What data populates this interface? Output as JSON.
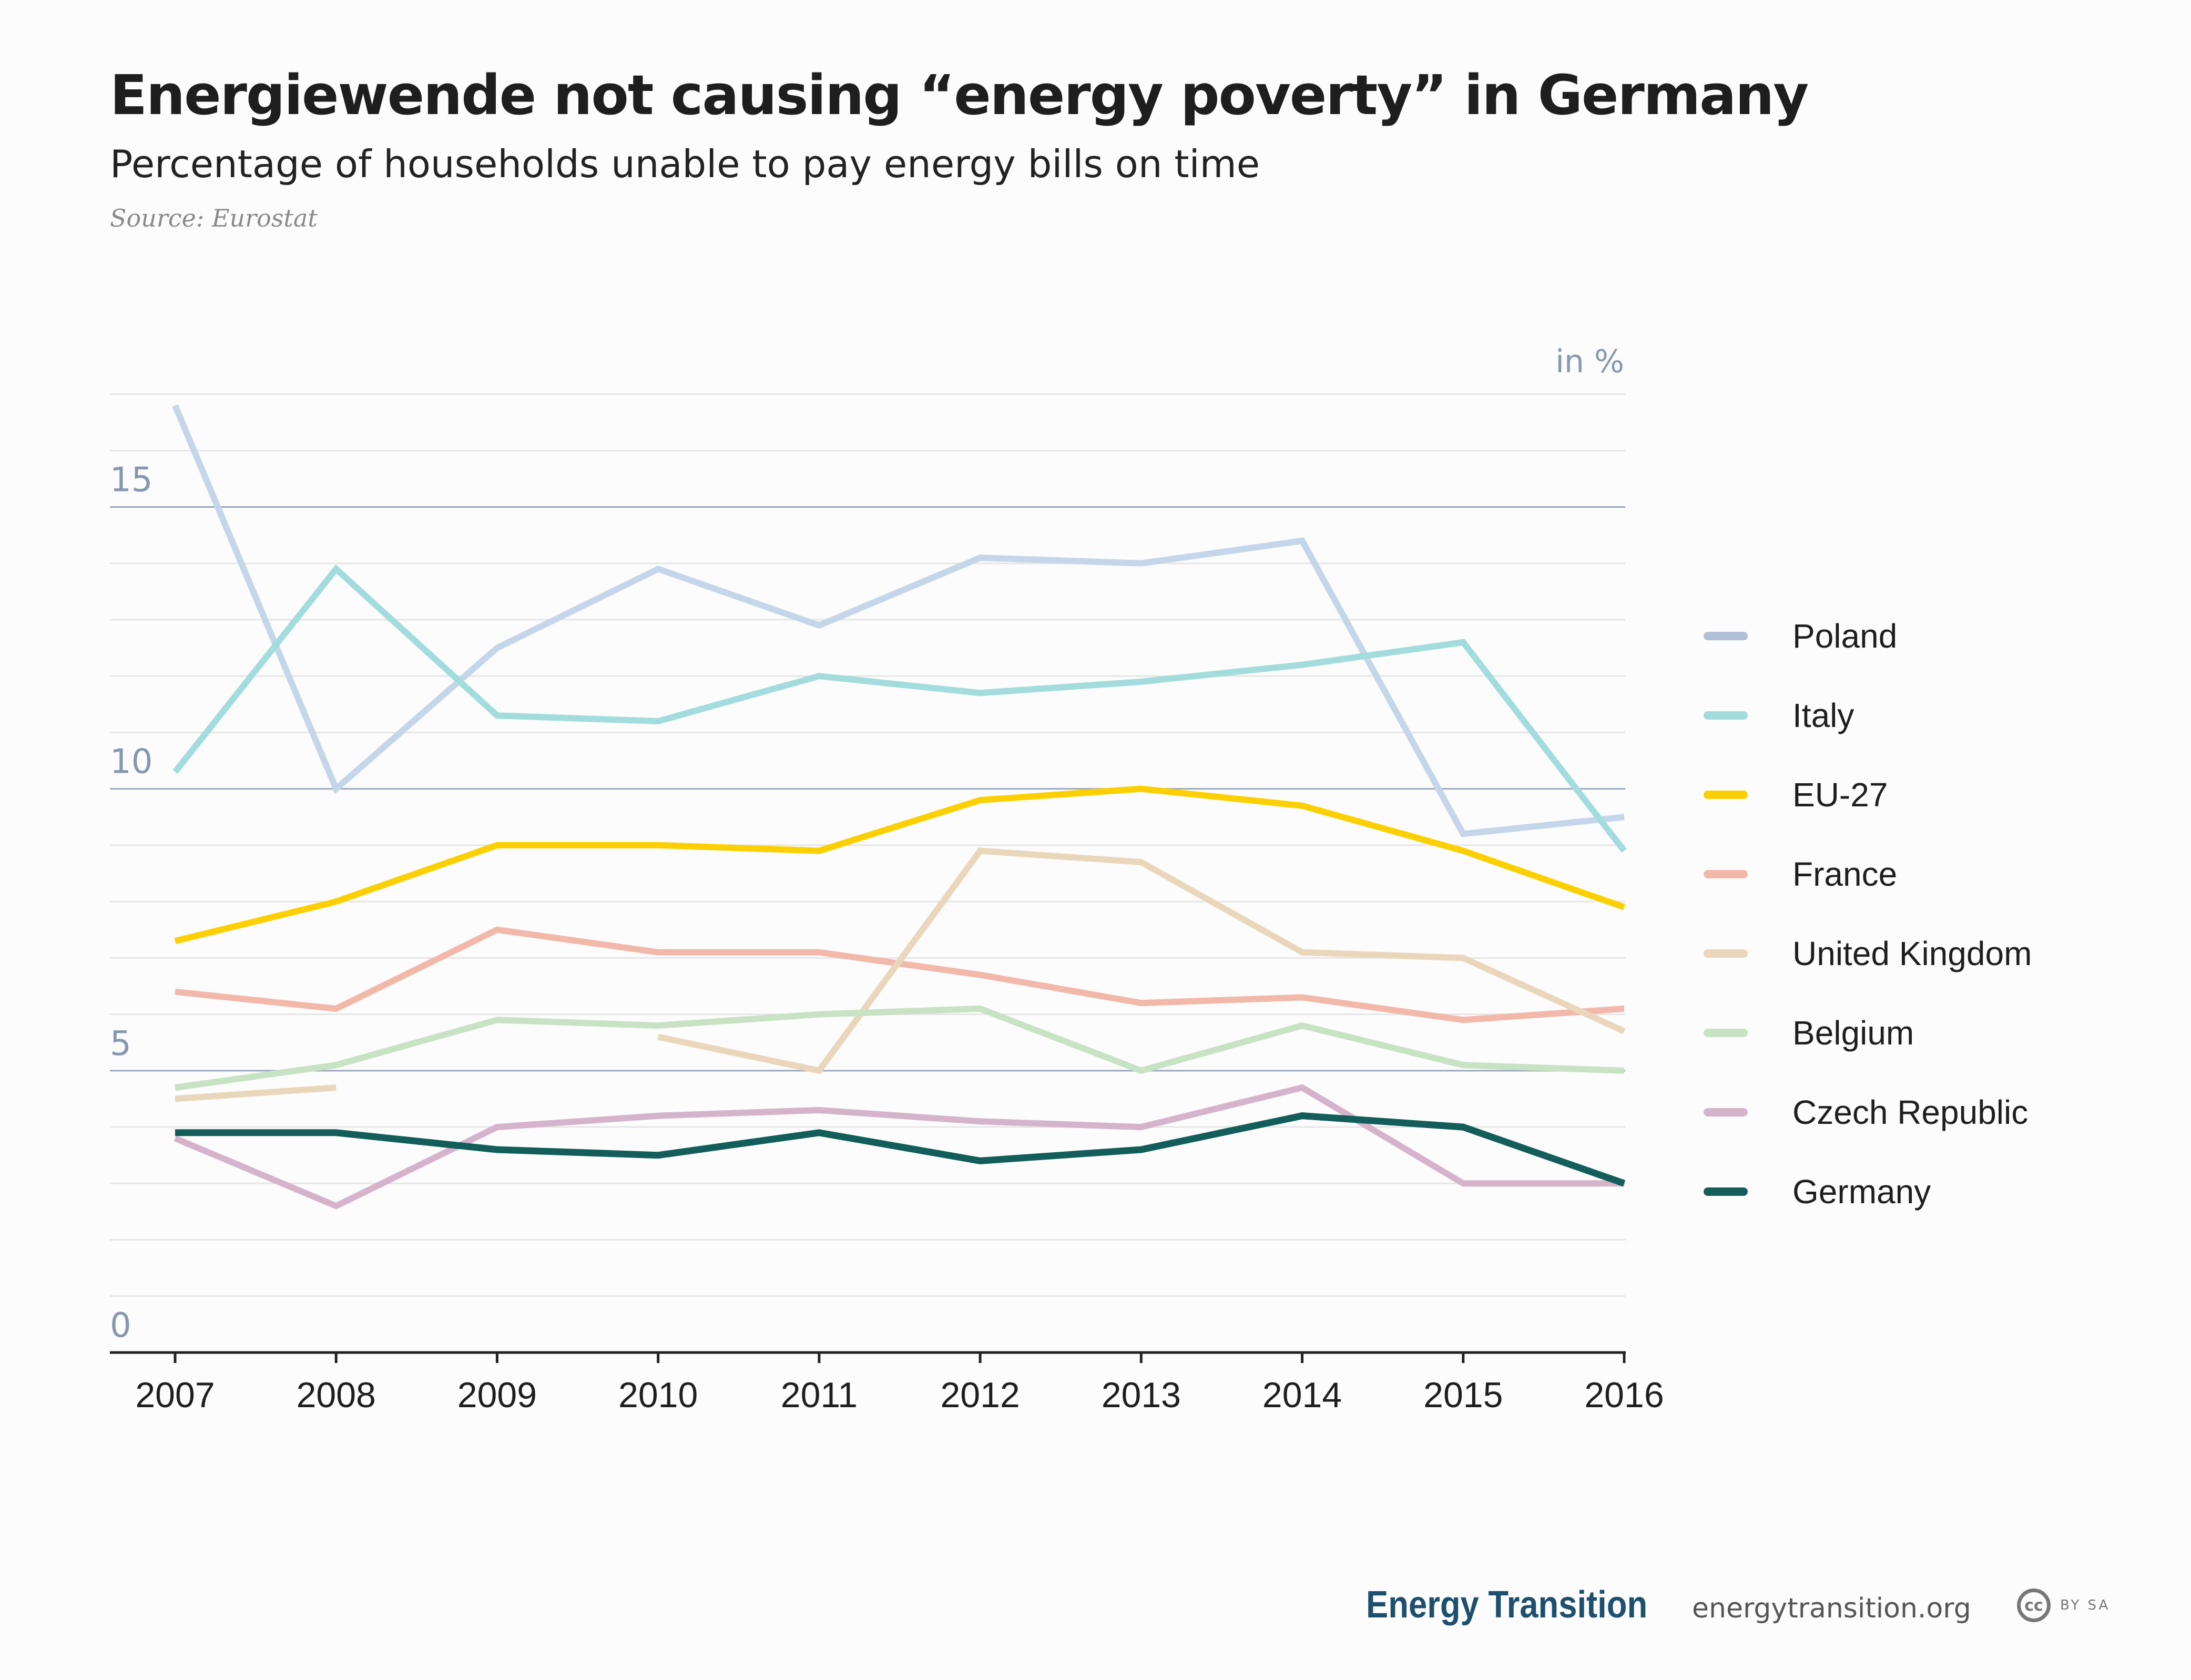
{
  "header": {
    "title": "Energiewende not causing “energy poverty” in Germany",
    "subtitle": "Percentage of households unable to pay energy bills on time",
    "source": "Source: Eurostat"
  },
  "footer": {
    "logo": "Energy Transition",
    "url": "energytransition.org",
    "license_icon": "cc",
    "license_text": "BY SA"
  },
  "chart_data": {
    "type": "line",
    "unit_label": "in %",
    "x": [
      "2007",
      "2008",
      "2009",
      "2010",
      "2011",
      "2012",
      "2013",
      "2014",
      "2015",
      "2016"
    ],
    "ylim": [
      0,
      17
    ],
    "yticks": [
      0,
      5,
      10,
      15
    ],
    "grid": true,
    "legend_position": "right",
    "series": [
      {
        "name": "Poland",
        "color": "#c5d6ea",
        "legend_color": "#aebfd6",
        "values": [
          16.8,
          10.0,
          12.5,
          13.9,
          12.9,
          14.1,
          14.0,
          14.4,
          9.2,
          9.5
        ]
      },
      {
        "name": "Italy",
        "color": "#a3dcdc",
        "values": [
          10.3,
          13.9,
          11.3,
          11.2,
          12.0,
          11.7,
          11.9,
          12.2,
          12.6,
          8.9
        ]
      },
      {
        "name": "EU-27",
        "color": "#fcd000",
        "values": [
          7.3,
          8.0,
          9.0,
          9.0,
          8.9,
          9.8,
          10.0,
          9.7,
          8.9,
          7.9
        ]
      },
      {
        "name": "France",
        "color": "#f2b8aa",
        "values": [
          6.4,
          6.1,
          7.5,
          7.1,
          7.1,
          6.7,
          6.2,
          6.3,
          5.9,
          6.1
        ]
      },
      {
        "name": "United Kingdom",
        "color": "#ead7bb",
        "values": [
          4.5,
          4.7,
          null,
          5.6,
          5.0,
          8.9,
          8.7,
          7.1,
          7.0,
          5.7
        ]
      },
      {
        "name": "Belgium",
        "color": "#c8e2c4",
        "values": [
          4.7,
          5.1,
          5.9,
          5.8,
          6.0,
          6.1,
          5.0,
          5.8,
          5.1,
          5.0
        ]
      },
      {
        "name": "Czech Republic",
        "color": "#d5b4cb",
        "values": [
          3.8,
          2.6,
          4.0,
          4.2,
          4.3,
          4.1,
          4.0,
          4.7,
          3.0,
          3.0
        ]
      },
      {
        "name": "Germany",
        "color": "#135e5a",
        "values": [
          3.9,
          3.9,
          3.6,
          3.5,
          3.9,
          3.4,
          3.6,
          4.2,
          4.0,
          3.0
        ]
      }
    ]
  }
}
